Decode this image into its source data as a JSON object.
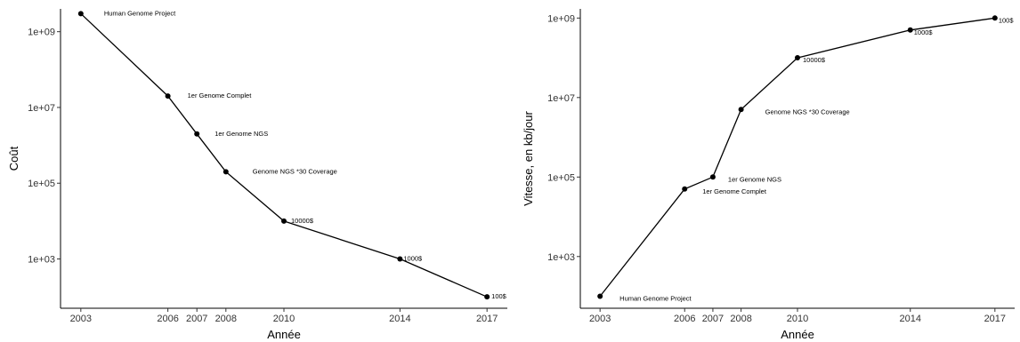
{
  "chart_data": [
    {
      "type": "line",
      "xlabel": "Année",
      "ylabel": "Coût",
      "yscale": "log10",
      "xlim": [
        2002.3,
        2017.7
      ],
      "ylim": [
        50,
        4000000000
      ],
      "xticks": [
        2003,
        2006,
        2007,
        2008,
        2010,
        2014,
        2017
      ],
      "xtick_labels": [
        "2003",
        "2006",
        "2007",
        "2008",
        "2010",
        "2014",
        "2017"
      ],
      "yticks": [
        1000,
        100000,
        10000000,
        1000000000
      ],
      "ytick_labels": [
        "1e+03",
        "1e+05",
        "1e+07",
        "1e+09"
      ],
      "grid": false,
      "points": [
        {
          "x": 2003,
          "y": 3000000000,
          "label": "Human Genome Project"
        },
        {
          "x": 2006,
          "y": 20000000,
          "label": "1er Genome Complet"
        },
        {
          "x": 2007,
          "y": 2000000,
          "label": "1er Genome NGS"
        },
        {
          "x": 2008,
          "y": 200000,
          "label": "Genome NGS *30 Coverage"
        },
        {
          "x": 2010,
          "y": 10000,
          "label": "10000$"
        },
        {
          "x": 2014,
          "y": 1000,
          "label": "1000$"
        },
        {
          "x": 2017,
          "y": 100,
          "label": "100$"
        }
      ]
    },
    {
      "type": "line",
      "xlabel": "Année",
      "ylabel": "Vitesse, en kb/jour",
      "yscale": "log10",
      "xlim": [
        2002.3,
        2017.7
      ],
      "ylim": [
        50,
        1700000000
      ],
      "xticks": [
        2003,
        2006,
        2007,
        2008,
        2010,
        2014,
        2017
      ],
      "xtick_labels": [
        "2003",
        "2006",
        "2007",
        "2008",
        "2010",
        "2014",
        "2017"
      ],
      "yticks": [
        1000,
        100000,
        10000000,
        1000000000
      ],
      "ytick_labels": [
        "1e+03",
        "1e+05",
        "1e+07",
        "1e+09"
      ],
      "grid": false,
      "points": [
        {
          "x": 2003,
          "y": 100,
          "label": "Human Genome Project"
        },
        {
          "x": 2006,
          "y": 50000,
          "label": "1er Genome Complet"
        },
        {
          "x": 2007,
          "y": 100000,
          "label": "1er Genome NGS"
        },
        {
          "x": 2008,
          "y": 5000000,
          "label": "Genome NGS *30 Coverage"
        },
        {
          "x": 2010,
          "y": 100000000,
          "label": "10000$"
        },
        {
          "x": 2014,
          "y": 500000000,
          "label": "1000$"
        },
        {
          "x": 2017,
          "y": 1000000000,
          "label": "100$"
        }
      ]
    }
  ]
}
